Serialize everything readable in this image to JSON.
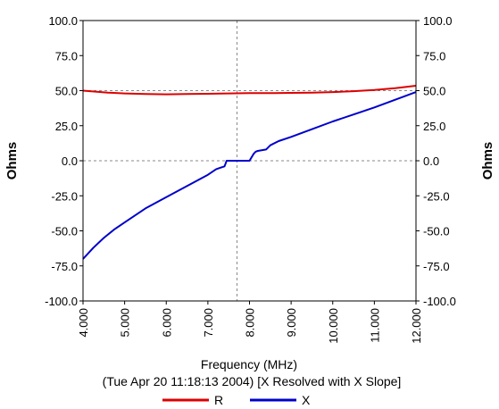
{
  "chart_data": {
    "type": "line",
    "xlabel": "Frequency (MHz)",
    "subtitle": "(Tue Apr 20 11:18:13 2004) [X Resolved with X Slope]",
    "ylabel_left": "Ohms",
    "ylabel_right": "Ohms",
    "xlim": [
      4.0,
      12.0
    ],
    "ylim": [
      -100.0,
      100.0
    ],
    "x_ticks": [
      "4.000",
      "5.000",
      "6.000",
      "7.000",
      "8.000",
      "9.000",
      "10.000",
      "11.000",
      "12.000"
    ],
    "y_ticks": [
      "100.0",
      "75.0",
      "50.0",
      "25.0",
      "0.0",
      "-25.0",
      "-50.0",
      "-75.0",
      "-100.0"
    ],
    "y_tick_values": [
      100,
      75,
      50,
      25,
      0,
      -25,
      -50,
      -75,
      -100
    ],
    "reference_lines": {
      "x": 7.7,
      "y": [
        0,
        50
      ]
    },
    "legend_position": "bottom",
    "series": [
      {
        "name": "R",
        "color": "#dd0000",
        "x": [
          4.0,
          4.3,
          4.6,
          5.0,
          5.5,
          6.0,
          6.5,
          7.0,
          7.5,
          8.0,
          8.3,
          8.6,
          9.0,
          9.5,
          10.0,
          10.5,
          11.0,
          11.5,
          12.0
        ],
        "y": [
          50.0,
          49.3,
          48.6,
          48.0,
          47.6,
          47.4,
          47.6,
          47.8,
          48.0,
          48.2,
          48.3,
          48.2,
          48.4,
          48.6,
          49.0,
          49.6,
          50.5,
          51.8,
          53.5
        ]
      },
      {
        "name": "X",
        "color": "#0000cc",
        "x": [
          4.0,
          4.25,
          4.5,
          4.75,
          5.0,
          5.5,
          6.0,
          6.5,
          7.0,
          7.2,
          7.3,
          7.4,
          7.45,
          7.5,
          8.0,
          8.1,
          8.15,
          8.2,
          8.4,
          8.5,
          8.7,
          9.0,
          9.5,
          10.0,
          10.5,
          11.0,
          11.5,
          12.0
        ],
        "y": [
          -70.0,
          -62.0,
          -55.0,
          -49.0,
          -44.0,
          -34.0,
          -26.0,
          -18.0,
          -10.0,
          -6.0,
          -5.0,
          -4.0,
          0.0,
          0.0,
          0.0,
          5.0,
          6.5,
          7.0,
          8.0,
          11.0,
          14.0,
          17.0,
          22.5,
          28.0,
          33.0,
          38.0,
          43.5,
          49.0
        ]
      }
    ]
  }
}
